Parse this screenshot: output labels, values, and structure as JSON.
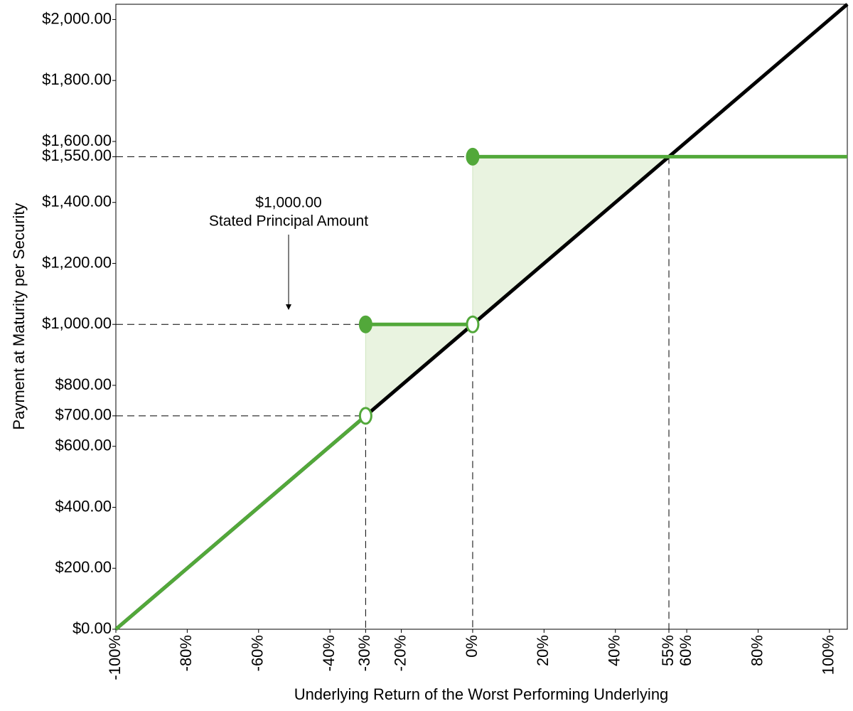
{
  "chart_data": {
    "type": "line",
    "x_label": "Underlying Return of the Worst Performing Underlying",
    "y_label": "Payment at Maturity per Security",
    "xlim": [
      -100,
      105
    ],
    "ylim": [
      0,
      2050
    ],
    "xticks": [
      {
        "value": -100,
        "label": "-100%"
      },
      {
        "value": -80,
        "label": "-80%"
      },
      {
        "value": -60,
        "label": "-60%"
      },
      {
        "value": -40,
        "label": "-40%"
      },
      {
        "value": -30,
        "label": "-30%"
      },
      {
        "value": -20,
        "label": "-20%"
      },
      {
        "value": 0,
        "label": "0%"
      },
      {
        "value": 20,
        "label": "20%"
      },
      {
        "value": 40,
        "label": "40%"
      },
      {
        "value": 55,
        "label": "55%"
      },
      {
        "value": 60,
        "label": "60%"
      },
      {
        "value": 80,
        "label": "80%"
      },
      {
        "value": 100,
        "label": "100%"
      }
    ],
    "yticks": [
      {
        "value": 0,
        "label": "$0.00"
      },
      {
        "value": 200,
        "label": "$200.00"
      },
      {
        "value": 400,
        "label": "$400.00"
      },
      {
        "value": 600,
        "label": "$600.00"
      },
      {
        "value": 700,
        "label": "$700.00"
      },
      {
        "value": 800,
        "label": "$800.00"
      },
      {
        "value": 1000,
        "label": "$1,000.00"
      },
      {
        "value": 1200,
        "label": "$1,200.00"
      },
      {
        "value": 1400,
        "label": "$1,400.00"
      },
      {
        "value": 1550,
        "label": "$1,550.00"
      },
      {
        "value": 1600,
        "label": "$1,600.00"
      },
      {
        "value": 1800,
        "label": "$1,800.00"
      },
      {
        "value": 2000,
        "label": "$2,000.00"
      }
    ],
    "series": [
      {
        "color": "#000000",
        "x": [
          -100,
          105
        ],
        "values": [
          0,
          2050
        ]
      },
      {
        "color": "#52a83a",
        "x": [
          -100,
          -30,
          -30,
          -30,
          0,
          0,
          0,
          105
        ],
        "values": [
          0,
          700,
          null,
          1000,
          1000,
          null,
          1550,
          1550
        ]
      }
    ],
    "filled_points": {
      "color": "#52a83a",
      "x": [
        -30,
        0
      ],
      "values": [
        1000,
        1550
      ]
    },
    "open_points": {
      "color": "#52a83a",
      "x": [
        -30,
        0
      ],
      "values": [
        700,
        1000
      ]
    },
    "shaded": [
      {
        "color": "#e9f3e0",
        "x": [
          -30,
          0
        ],
        "upper": [
          1000,
          1000
        ],
        "lower": [
          700,
          1000
        ]
      },
      {
        "color": "#e9f3e0",
        "x": [
          0,
          55
        ],
        "upper": [
          1550,
          1550
        ],
        "lower": [
          1000,
          1550
        ]
      }
    ],
    "h_guides": [
      {
        "y": 700,
        "x": -30
      },
      {
        "y": 1000,
        "x": -30
      },
      {
        "y": 1550,
        "x": 0
      }
    ],
    "v_guides": [
      {
        "x": -30,
        "y": 700
      },
      {
        "x": 0,
        "y": 1000
      },
      {
        "x": 55,
        "y": 1550
      }
    ],
    "annotation": [
      "$1,000.00",
      "Stated Principal Amount"
    ]
  }
}
